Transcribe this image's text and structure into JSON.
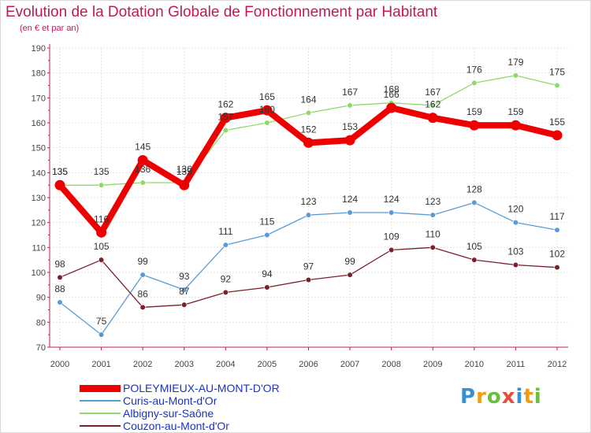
{
  "chart_data": {
    "type": "line",
    "title": "Evolution de la Dotation Globale de Fonctionnement par Habitant",
    "subtitle": "(en € et par an)",
    "xlabel": "",
    "ylabel": "",
    "x": [
      "2000",
      "2001",
      "2002",
      "2003",
      "2004",
      "2005",
      "2006",
      "2007",
      "2008",
      "2009",
      "2010",
      "2011",
      "2012"
    ],
    "ylim": [
      70,
      190
    ],
    "yticks": [
      "70",
      "80",
      "90",
      "100",
      "110",
      "120",
      "130",
      "140",
      "150",
      "160",
      "170",
      "180",
      "190"
    ],
    "grid": true,
    "legend_position": "bottom-left",
    "series": [
      {
        "name": "POLEYMIEUX-AU-MONT-D'OR",
        "color": "#ee0000",
        "values": [
          135,
          116,
          145,
          135,
          162,
          165,
          152,
          153,
          166,
          162,
          159,
          159,
          155
        ]
      },
      {
        "name": "Curis-au-Mont-d'Or",
        "color": "#5b9bd5",
        "values": [
          88,
          75,
          99,
          93,
          111,
          115,
          123,
          124,
          124,
          123,
          128,
          120,
          117
        ]
      },
      {
        "name": "Albigny-sur-Saône",
        "color": "#8fd96b",
        "values": [
          135,
          135,
          136,
          136,
          157,
          160,
          164,
          167,
          168,
          167,
          176,
          179,
          175
        ]
      },
      {
        "name": "Couzon-au-Mont-d'Or",
        "color": "#7b1f2a",
        "values": [
          98,
          105,
          86,
          87,
          92,
          94,
          97,
          99,
          109,
          110,
          105,
          103,
          102
        ]
      }
    ]
  },
  "logo": {
    "text": "Proxiti",
    "letters": [
      "P",
      "r",
      "o",
      "x",
      "i",
      "t",
      "i"
    ],
    "colors": [
      "#3a8fd1",
      "#f39c12",
      "#6abf3a",
      "#e74c3c",
      "#3a8fd1",
      "#f39c12",
      "#6abf3a"
    ]
  }
}
